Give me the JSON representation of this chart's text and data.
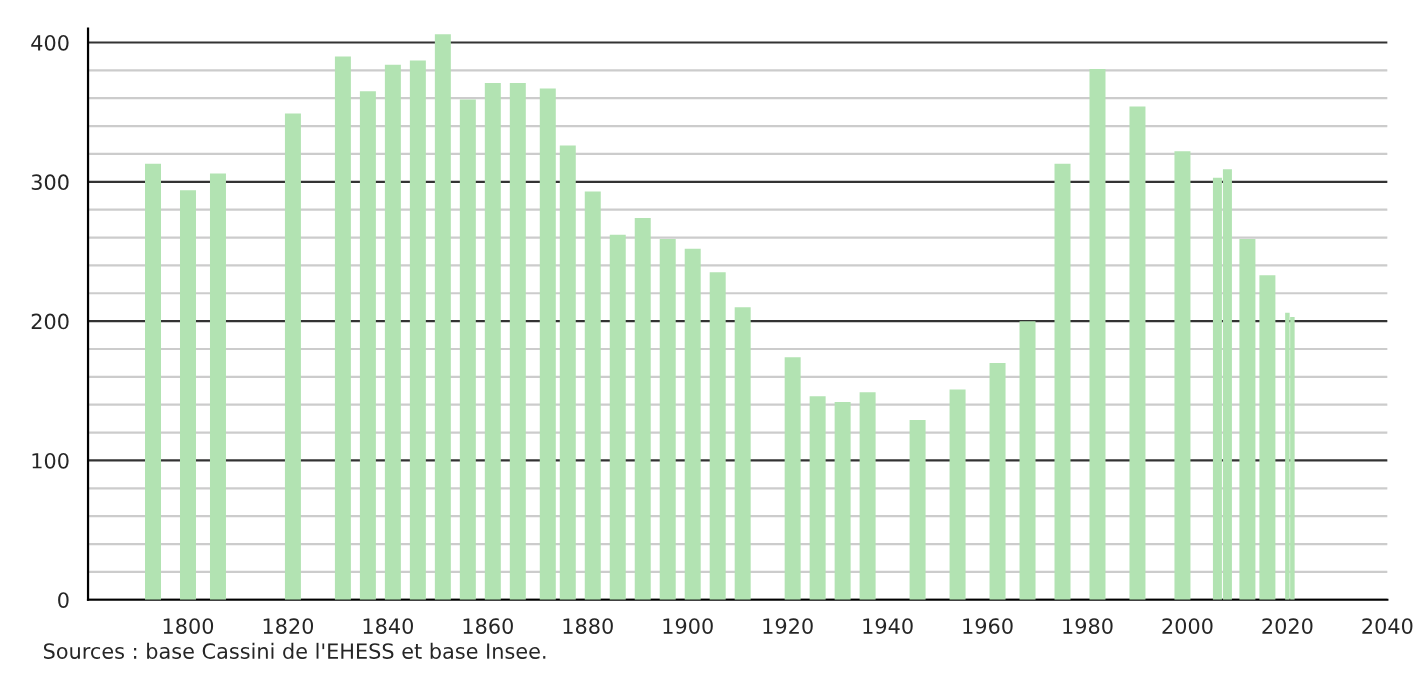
{
  "chart_data": {
    "type": "bar",
    "x": [
      1793,
      1800,
      1806,
      1821,
      1831,
      1836,
      1841,
      1846,
      1851,
      1856,
      1861,
      1866,
      1872,
      1876,
      1881,
      1886,
      1891,
      1896,
      1901,
      1906,
      1911,
      1921,
      1926,
      1931,
      1936,
      1946,
      1954,
      1962,
      1968,
      1975,
      1982,
      1990,
      1999,
      2006,
      2008,
      2012,
      2016,
      2020,
      2021
    ],
    "values": [
      313,
      294,
      306,
      349,
      390,
      365,
      384,
      387,
      406,
      359,
      371,
      371,
      367,
      326,
      293,
      262,
      274,
      259,
      252,
      235,
      210,
      174,
      146,
      142,
      149,
      129,
      151,
      170,
      200,
      313,
      381,
      354,
      322,
      303,
      309,
      259,
      233,
      206,
      203
    ],
    "color": "#b2e3b2",
    "xlim": [
      1780,
      2040
    ],
    "xticks": [
      1800,
      1820,
      1840,
      1860,
      1880,
      1900,
      1920,
      1940,
      1960,
      1980,
      2000,
      2020,
      2040
    ],
    "ylim": [
      0,
      410
    ],
    "yticks": [
      0,
      100,
      200,
      300,
      400
    ],
    "grid": "y",
    "annotations": [
      "Sources : base Cassini de l'EHESS et base Insee."
    ]
  }
}
